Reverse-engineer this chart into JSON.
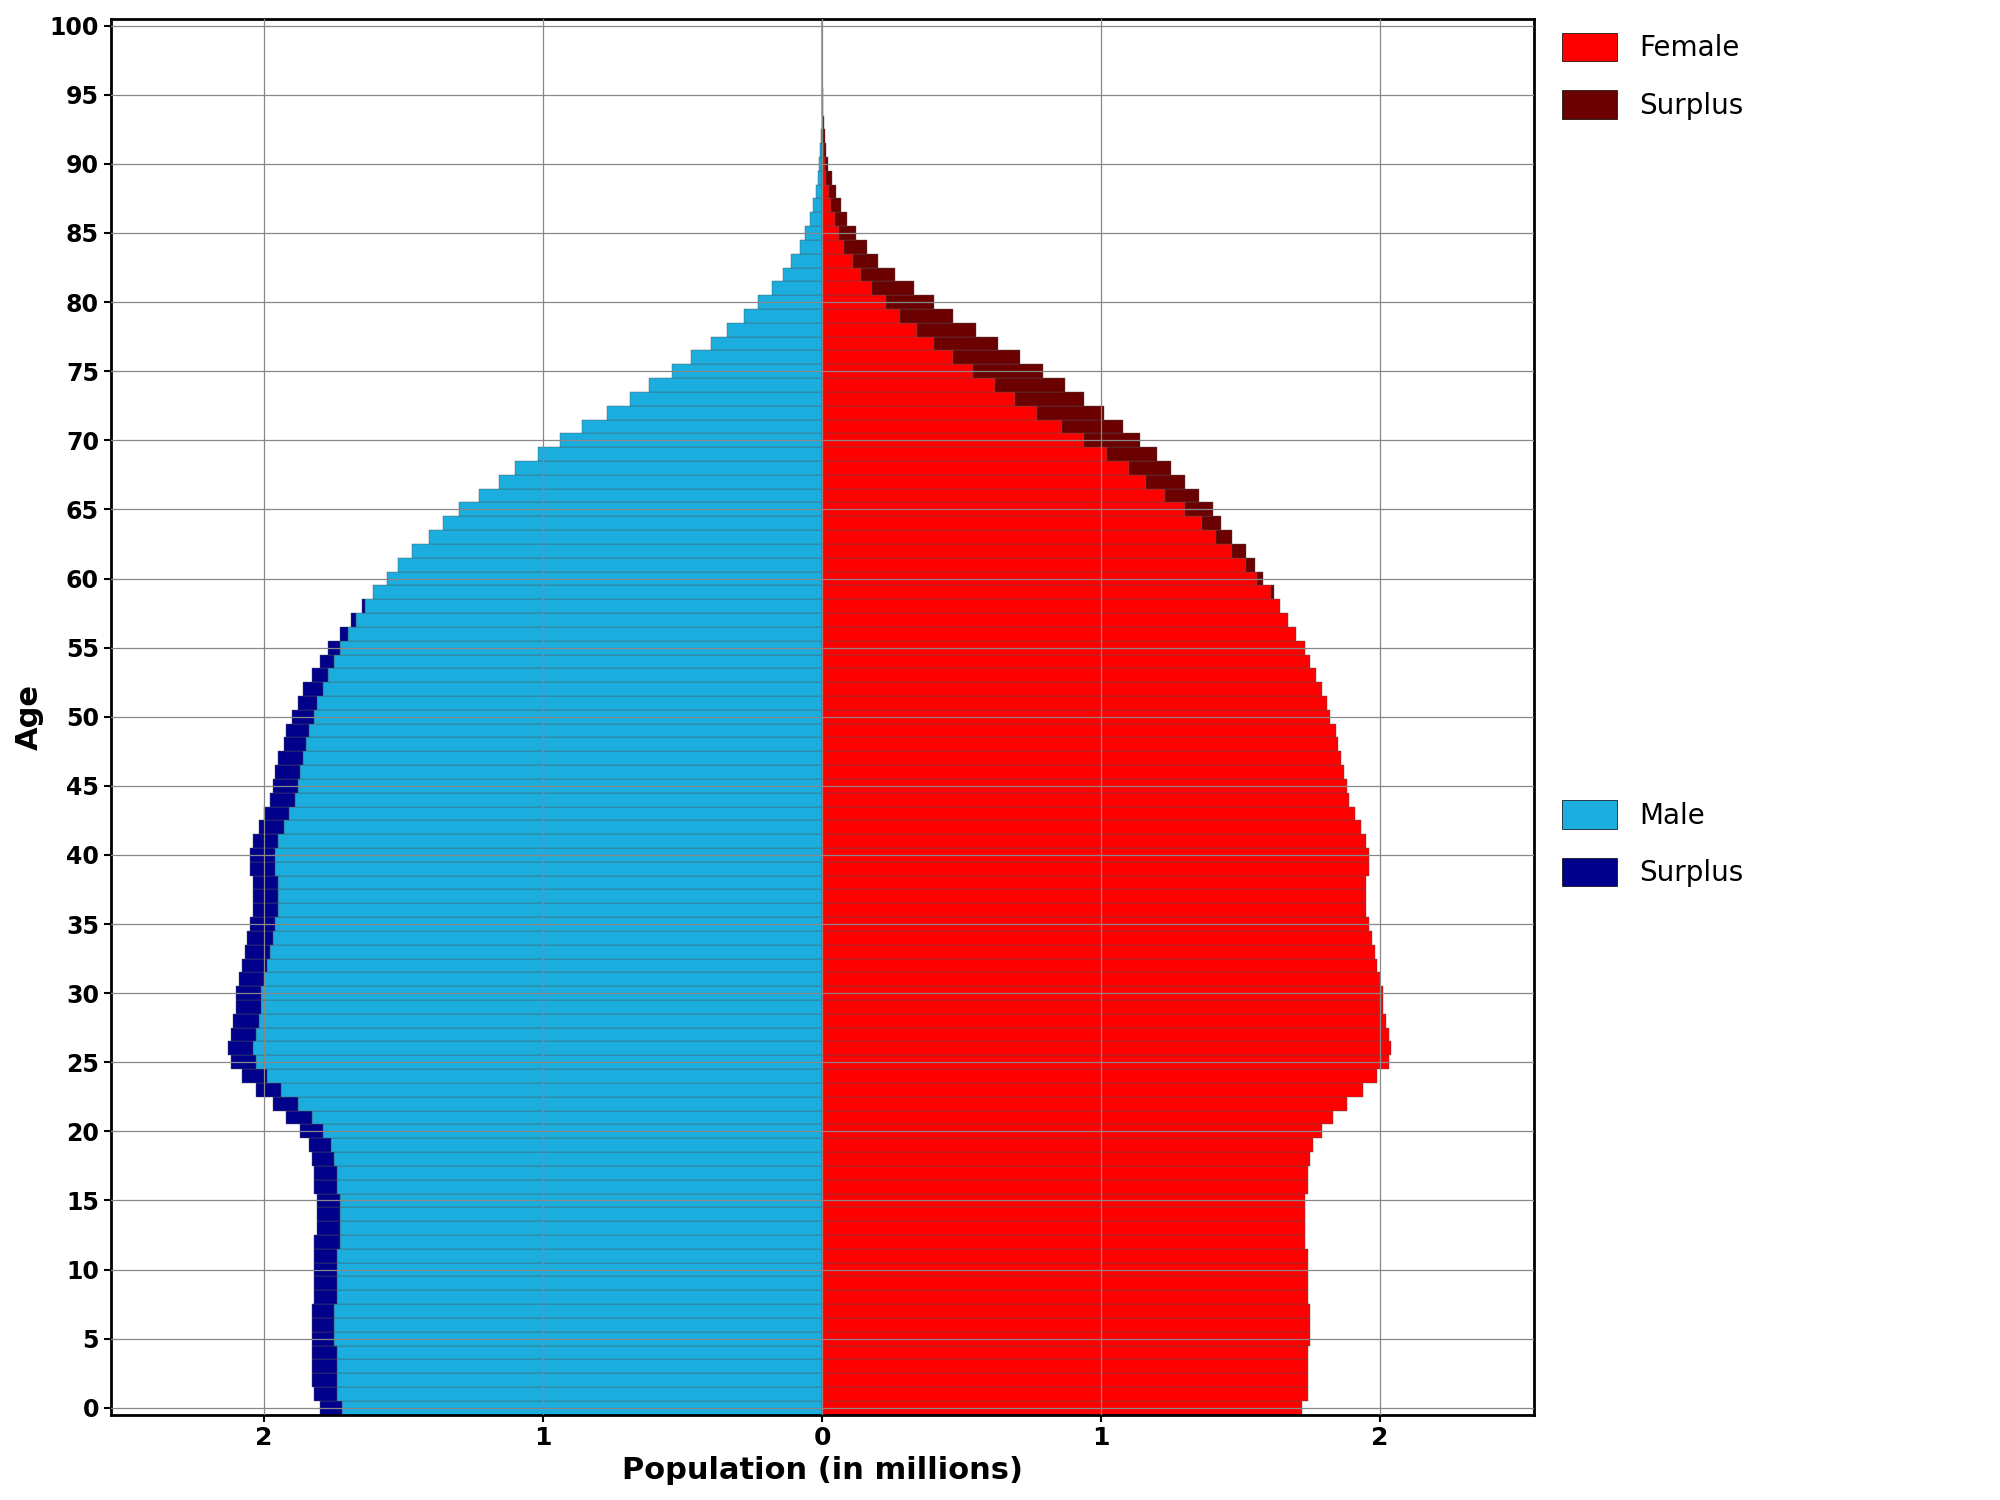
{
  "ages": [
    0,
    1,
    2,
    3,
    4,
    5,
    6,
    7,
    8,
    9,
    10,
    11,
    12,
    13,
    14,
    15,
    16,
    17,
    18,
    19,
    20,
    21,
    22,
    23,
    24,
    25,
    26,
    27,
    28,
    29,
    30,
    31,
    32,
    33,
    34,
    35,
    36,
    37,
    38,
    39,
    40,
    41,
    42,
    43,
    44,
    45,
    46,
    47,
    48,
    49,
    50,
    51,
    52,
    53,
    54,
    55,
    56,
    57,
    58,
    59,
    60,
    61,
    62,
    63,
    64,
    65,
    66,
    67,
    68,
    69,
    70,
    71,
    72,
    73,
    74,
    75,
    76,
    77,
    78,
    79,
    80,
    81,
    82,
    83,
    84,
    85,
    86,
    87,
    88,
    89,
    90,
    91,
    92,
    93,
    94,
    95,
    96,
    97,
    98,
    99,
    100
  ],
  "male": [
    1.8,
    1.82,
    1.83,
    1.83,
    1.83,
    1.83,
    1.83,
    1.83,
    1.82,
    1.82,
    1.82,
    1.82,
    1.82,
    1.81,
    1.81,
    1.81,
    1.82,
    1.82,
    1.83,
    1.84,
    1.87,
    1.92,
    1.97,
    2.03,
    2.08,
    2.12,
    2.13,
    2.12,
    2.11,
    2.1,
    2.1,
    2.09,
    2.08,
    2.07,
    2.06,
    2.05,
    2.04,
    2.04,
    2.04,
    2.05,
    2.05,
    2.04,
    2.02,
    2.0,
    1.98,
    1.97,
    1.96,
    1.95,
    1.93,
    1.92,
    1.9,
    1.88,
    1.86,
    1.83,
    1.8,
    1.77,
    1.73,
    1.69,
    1.65,
    1.61,
    1.56,
    1.52,
    1.47,
    1.41,
    1.36,
    1.3,
    1.23,
    1.16,
    1.1,
    1.02,
    0.94,
    0.86,
    0.77,
    0.69,
    0.62,
    0.54,
    0.47,
    0.4,
    0.34,
    0.28,
    0.23,
    0.18,
    0.14,
    0.11,
    0.08,
    0.06,
    0.045,
    0.033,
    0.023,
    0.015,
    0.01,
    0.006,
    0.004,
    0.002,
    0.001,
    0.0008,
    0.0005,
    0.0003,
    0.00015,
    7e-05,
    3e-05
  ],
  "female": [
    1.72,
    1.74,
    1.74,
    1.74,
    1.74,
    1.75,
    1.75,
    1.75,
    1.74,
    1.74,
    1.74,
    1.74,
    1.73,
    1.73,
    1.73,
    1.73,
    1.74,
    1.74,
    1.75,
    1.76,
    1.79,
    1.83,
    1.88,
    1.94,
    1.99,
    2.03,
    2.04,
    2.03,
    2.02,
    2.01,
    2.01,
    2.0,
    1.99,
    1.98,
    1.97,
    1.96,
    1.95,
    1.95,
    1.95,
    1.96,
    1.96,
    1.95,
    1.93,
    1.91,
    1.89,
    1.88,
    1.87,
    1.86,
    1.85,
    1.84,
    1.82,
    1.81,
    1.79,
    1.77,
    1.75,
    1.73,
    1.7,
    1.67,
    1.64,
    1.62,
    1.58,
    1.55,
    1.52,
    1.47,
    1.43,
    1.4,
    1.35,
    1.3,
    1.25,
    1.2,
    1.14,
    1.08,
    1.01,
    0.94,
    0.87,
    0.79,
    0.71,
    0.63,
    0.55,
    0.47,
    0.4,
    0.33,
    0.26,
    0.2,
    0.16,
    0.12,
    0.09,
    0.068,
    0.049,
    0.034,
    0.022,
    0.014,
    0.009,
    0.005,
    0.003,
    0.002,
    0.001,
    0.0006,
    0.0003,
    0.00015,
    6e-05
  ],
  "male_color": "#1AADDE",
  "female_color": "#FF0000",
  "male_surplus_color": "#00008B",
  "female_surplus_color": "#6B0000",
  "bar_edgecolor": "#555555",
  "bar_edgewidth": 0.3,
  "xlabel": "Population (in millions)",
  "ylabel": "Age",
  "xlim": 2.55,
  "ylim_max": 100.5,
  "ylim_min": -0.5,
  "background_color": "#FFFFFF",
  "grid_color": "#888888",
  "legend_female": "Female",
  "legend_female_surplus": "Surplus",
  "legend_male": "Male",
  "legend_male_surplus": "Surplus",
  "x_ticks": [
    -2,
    -1,
    0,
    1,
    2
  ],
  "y_ticks": [
    0,
    5,
    10,
    15,
    20,
    25,
    30,
    35,
    40,
    45,
    50,
    55,
    60,
    65,
    70,
    75,
    80,
    85,
    90,
    95,
    100
  ]
}
